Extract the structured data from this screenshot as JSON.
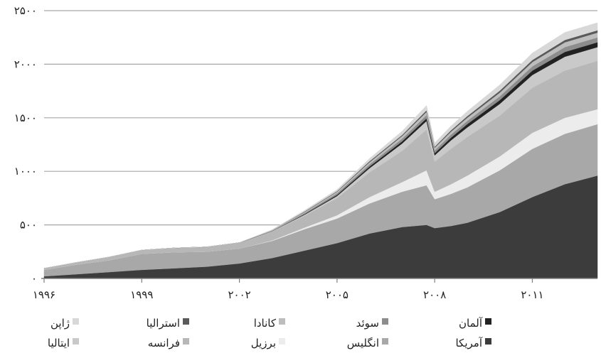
{
  "chart_data": {
    "type": "area",
    "stacked": true,
    "title": "",
    "xlabel": "",
    "ylabel": "",
    "ylim": [
      0,
      2500
    ],
    "xlim": [
      1996,
      2013
    ],
    "x_ticks": [
      1996,
      1999,
      2002,
      2005,
      2008,
      2011
    ],
    "x_tick_labels": [
      "۱۹۹۶",
      "۱۹۹۹",
      "۲۰۰۲",
      "۲۰۰۵",
      "۲۰۰۸",
      "۲۰۱۱"
    ],
    "y_ticks": [
      0,
      500,
      1000,
      1500,
      2000,
      2500
    ],
    "y_tick_labels": [
      "۰",
      "۵۰۰",
      "۱۰۰۰",
      "۱۵۰۰",
      "۲۰۰۰",
      "۲۵۰۰"
    ],
    "grid": true,
    "legend_position": "bottom",
    "x": [
      1996,
      1997,
      1998,
      1999,
      2000,
      2001,
      2002,
      2003,
      2004,
      2005,
      2006,
      2007,
      2007.75,
      2008,
      2008.5,
      2009,
      2010,
      2011,
      2012,
      2013
    ],
    "series": [
      {
        "name": "آمریکا",
        "color": "#3c3c3c",
        "values": [
          20,
          40,
          60,
          80,
          95,
          110,
          140,
          190,
          260,
          330,
          420,
          480,
          500,
          470,
          490,
          520,
          620,
          760,
          880,
          960
        ]
      },
      {
        "name": "انگلیس",
        "color": "#a8a8a8",
        "values": [
          60,
          90,
          110,
          150,
          150,
          140,
          140,
          160,
          200,
          230,
          280,
          330,
          370,
          270,
          300,
          330,
          390,
          450,
          470,
          480
        ]
      },
      {
        "name": "برزیل",
        "color": "#ececec",
        "values": [
          0,
          0,
          0,
          0,
          0,
          0,
          0,
          5,
          15,
          30,
          60,
          90,
          140,
          70,
          90,
          110,
          130,
          150,
          150,
          140
        ]
      },
      {
        "name": "فرانسه",
        "color": "#b7b7b7",
        "values": [
          15,
          20,
          30,
          35,
          40,
          45,
          55,
          80,
          110,
          160,
          230,
          290,
          380,
          280,
          330,
          360,
          380,
          420,
          440,
          450
        ]
      },
      {
        "name": "ایتالیا",
        "color": "#c9c9c9",
        "values": [
          0,
          0,
          0,
          0,
          0,
          0,
          0,
          5,
          10,
          20,
          40,
          70,
          80,
          60,
          80,
          90,
          110,
          120,
          130,
          130
        ]
      },
      {
        "name": "آلمان",
        "color": "#222222",
        "values": [
          0,
          0,
          0,
          0,
          0,
          0,
          0,
          0,
          5,
          10,
          15,
          20,
          25,
          20,
          25,
          30,
          35,
          40,
          45,
          45
        ]
      },
      {
        "name": "سوئد",
        "color": "#8d8d8d",
        "values": [
          0,
          0,
          0,
          0,
          0,
          0,
          0,
          5,
          10,
          15,
          20,
          25,
          30,
          25,
          28,
          30,
          35,
          40,
          45,
          45
        ]
      },
      {
        "name": "کانادا",
        "color": "#bdbdbd",
        "values": [
          0,
          0,
          0,
          0,
          0,
          0,
          0,
          5,
          10,
          15,
          20,
          25,
          30,
          25,
          28,
          30,
          35,
          40,
          45,
          45
        ]
      },
      {
        "name": "استرالیا",
        "color": "#5a5a5a",
        "values": [
          0,
          0,
          0,
          0,
          0,
          0,
          0,
          0,
          5,
          5,
          10,
          10,
          15,
          10,
          12,
          15,
          18,
          20,
          22,
          22
        ]
      },
      {
        "name": "ژاپن",
        "color": "#d8d8d8",
        "values": [
          0,
          0,
          0,
          0,
          0,
          0,
          0,
          5,
          10,
          15,
          25,
          35,
          45,
          35,
          40,
          45,
          55,
          65,
          70,
          70
        ]
      }
    ],
    "legend_rows": [
      [
        "آلمان",
        "سوئد",
        "کانادا",
        "استرالیا",
        "ژاپن"
      ],
      [
        "آمریکا",
        "انگلیس",
        "برزیل",
        "فرانسه",
        "ایتالیا"
      ]
    ],
    "colors": {
      "gridline": "#a6a6a6",
      "axis": "#7f7f7f",
      "text": "#222222"
    }
  }
}
